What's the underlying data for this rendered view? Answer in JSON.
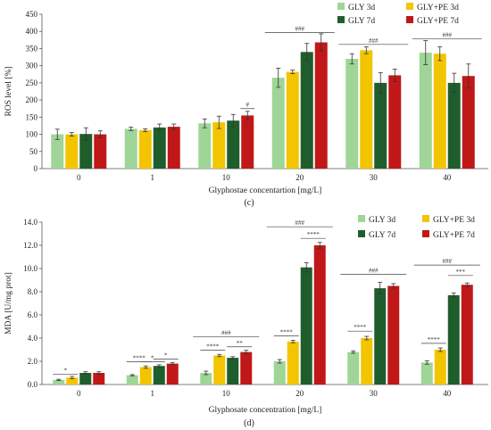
{
  "chart_data": [
    {
      "id": "c",
      "type": "bar",
      "panel_label": "(c)",
      "categories": [
        "0",
        "1",
        "10",
        "20",
        "30",
        "40"
      ],
      "xlabel": "Glyphostae concentartion [mg/L]",
      "ylabel": "ROS level [%]",
      "ylim": [
        0,
        450
      ],
      "yticks": [
        0,
        50,
        100,
        150,
        200,
        250,
        300,
        350,
        400,
        450
      ],
      "legend_position": "top-right",
      "series": [
        {
          "name": "GLY 3d",
          "color": "#9fd597",
          "values": [
            100,
            116,
            132,
            265,
            320,
            338
          ],
          "errors": [
            15,
            5,
            13,
            28,
            15,
            35
          ]
        },
        {
          "name": "GLY+PE 3d",
          "color": "#f2c500",
          "values": [
            100,
            112,
            135,
            282,
            345,
            335
          ],
          "errors": [
            5,
            4,
            18,
            5,
            10,
            20
          ]
        },
        {
          "name": "GLY 7d",
          "color": "#1f5e2c",
          "values": [
            101,
            120,
            140,
            340,
            250,
            250
          ],
          "errors": [
            18,
            10,
            18,
            25,
            30,
            28
          ]
        },
        {
          "name": "GLY+PE 7d",
          "color": "#c01818",
          "values": [
            100,
            122,
            155,
            368,
            272,
            270
          ],
          "errors": [
            10,
            8,
            12,
            25,
            18,
            35
          ]
        }
      ],
      "annotations": [
        {
          "category": "10",
          "text": "#",
          "span": "GLY 7d-GLY+PE 7d"
        },
        {
          "category": "20",
          "text": "###",
          "span": "all"
        },
        {
          "category": "30",
          "text": "###",
          "span": "all"
        },
        {
          "category": "40",
          "text": "###",
          "span": "all"
        }
      ]
    },
    {
      "id": "d",
      "type": "bar",
      "panel_label": "(d)",
      "categories": [
        "0",
        "1",
        "10",
        "20",
        "30",
        "40"
      ],
      "xlabel": "Glyphosate concentration [mg/L]",
      "ylabel": "MDA [U/mg prot]",
      "ylim": [
        0,
        14
      ],
      "yticks": [
        "0.0",
        "2.0",
        "4.0",
        "6.0",
        "8.0",
        "10.0",
        "12.0",
        "14.0"
      ],
      "legend_position": "top-right",
      "series": [
        {
          "name": "GLY 3d",
          "color": "#9fd597",
          "values": [
            0.4,
            0.8,
            1.0,
            2.0,
            2.8,
            1.9
          ],
          "errors": [
            0.05,
            0.05,
            0.15,
            0.15,
            0.1,
            0.15
          ]
        },
        {
          "name": "GLY+PE 3d",
          "color": "#f2c500",
          "values": [
            0.6,
            1.5,
            2.5,
            3.7,
            4.0,
            3.0
          ],
          "errors": [
            0.1,
            0.1,
            0.1,
            0.1,
            0.15,
            0.15
          ]
        },
        {
          "name": "GLY 7d",
          "color": "#1f5e2c",
          "values": [
            1.0,
            1.6,
            2.3,
            10.1,
            8.3,
            7.7
          ],
          "errors": [
            0.1,
            0.1,
            0.1,
            0.4,
            0.5,
            0.2
          ]
        },
        {
          "name": "GLY+PE 7d",
          "color": "#c01818",
          "values": [
            1.0,
            1.8,
            2.8,
            12.0,
            8.5,
            8.6
          ],
          "errors": [
            0.1,
            0.1,
            0.15,
            0.25,
            0.2,
            0.15
          ]
        }
      ],
      "annotations": [
        {
          "category": "0",
          "text": "*",
          "span": "GLY 3d-GLY+PE 3d"
        },
        {
          "category": "1",
          "text": "****",
          "span": "GLY 3d-GLY+PE 3d"
        },
        {
          "category": "1",
          "text": "*",
          "span": "GLY+PE 3d-GLY 7d"
        },
        {
          "category": "1",
          "text": "*",
          "span": "GLY 7d-GLY+PE 7d"
        },
        {
          "category": "10",
          "text": "****",
          "span": "GLY 3d-GLY+PE 3d"
        },
        {
          "category": "10",
          "text": "**",
          "span": "GLY 7d-GLY+PE 7d"
        },
        {
          "category": "10",
          "text": "###",
          "span": "all"
        },
        {
          "category": "20",
          "text": "****",
          "span": "GLY 3d-GLY+PE 3d"
        },
        {
          "category": "20",
          "text": "****",
          "span": "GLY 7d-GLY+PE 7d"
        },
        {
          "category": "20",
          "text": "###",
          "span": "all"
        },
        {
          "category": "30",
          "text": "****",
          "span": "GLY 3d-GLY+PE 3d"
        },
        {
          "category": "30",
          "text": "###",
          "span": "all"
        },
        {
          "category": "40",
          "text": "****",
          "span": "GLY 3d-GLY+PE 3d"
        },
        {
          "category": "40",
          "text": "***",
          "span": "GLY 7d-GLY+PE 7d"
        },
        {
          "category": "40",
          "text": "###",
          "span": "all"
        }
      ]
    }
  ]
}
